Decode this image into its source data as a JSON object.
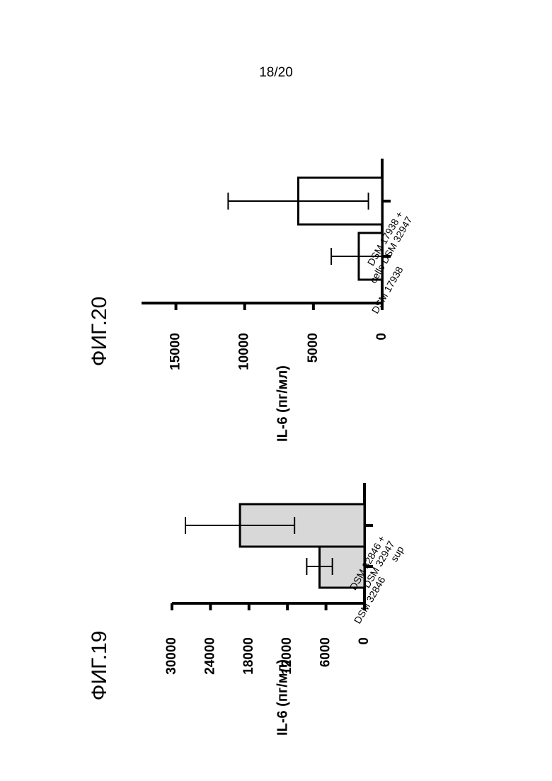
{
  "page": {
    "number": "18/20"
  },
  "chart_data": [
    {
      "type": "bar",
      "title": "ФИГ.19",
      "ylabel": "IL-6 (пг/мл)",
      "xlabel": "",
      "ylim": [
        0,
        30000
      ],
      "yticks": [
        "0",
        "6000",
        "12000",
        "18000",
        "24000",
        "30000"
      ],
      "ytick_values": [
        0,
        6000,
        12000,
        18000,
        24000,
        30000
      ],
      "orientation": "rotated-90-ccw",
      "categories": [
        "DSM 32846",
        "DSM 32846 +\nDSM 32947\nsup"
      ],
      "values": [
        7000,
        19400
      ],
      "errors": [
        2000,
        8500
      ],
      "bar_fill": "#d8d8d8",
      "bar_stroke": "#000000"
    },
    {
      "type": "bar",
      "title": "ФИГ.20",
      "ylabel": "IL-6 (пг/мл)",
      "xlabel": "",
      "ylim": [
        0,
        17500
      ],
      "yticks": [
        "0",
        "5000",
        "10000",
        "15000"
      ],
      "ytick_values": [
        0,
        5000,
        10000,
        15000
      ],
      "orientation": "rotated-90-ccw",
      "categories": [
        "DSM 17938",
        "DSM 17938 +\ncells DSM 32947"
      ],
      "values": [
        1700,
        6100
      ],
      "errors": [
        2000,
        5100
      ],
      "bar_fill": "#ffffff",
      "bar_stroke": "#000000"
    }
  ]
}
